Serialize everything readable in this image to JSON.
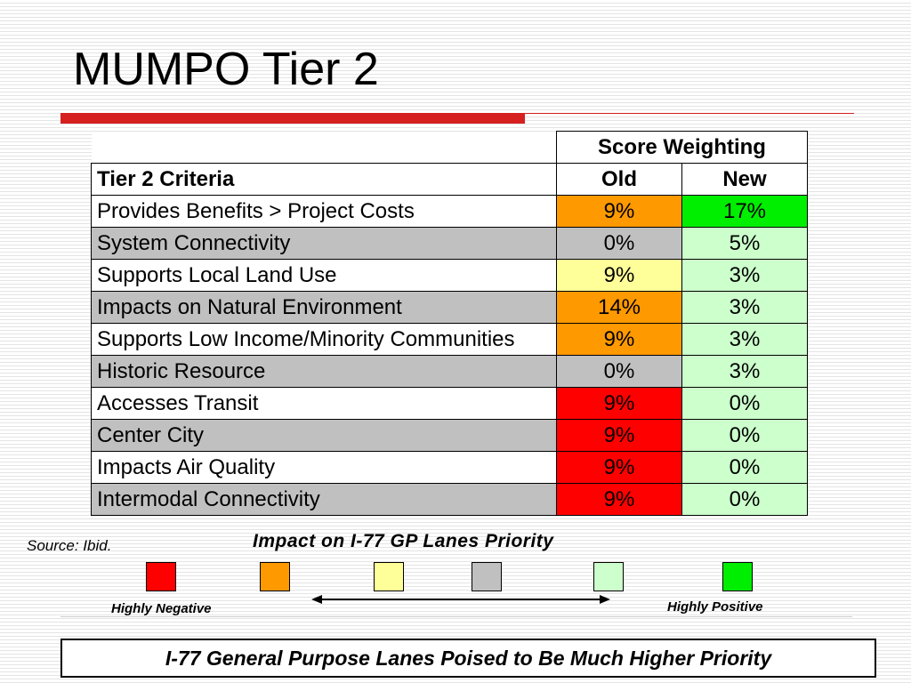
{
  "slide": {
    "title": "MUMPO Tier 2",
    "source": "Source: Ibid.",
    "banner": "I-77 General Purpose Lanes Poised to Be Much Higher Priority"
  },
  "table": {
    "group_header": "Score Weighting",
    "col_criteria": "Tier 2 Criteria",
    "col_old": "Old",
    "col_new": "New",
    "rows": [
      {
        "name": "Provides Benefits > Project Costs",
        "old": "9%",
        "new": "17%"
      },
      {
        "name": "System Connectivity",
        "old": "0%",
        "new": "5%"
      },
      {
        "name": "Supports Local Land Use",
        "old": "9%",
        "new": "3%"
      },
      {
        "name": "Impacts on Natural Environment",
        "old": "14%",
        "new": "3%"
      },
      {
        "name": "Supports Low Income/Minority Communities",
        "old": "9%",
        "new": "3%"
      },
      {
        "name": "Historic Resource",
        "old": "0%",
        "new": "3%"
      },
      {
        "name": "Accesses Transit",
        "old": "9%",
        "new": "0%"
      },
      {
        "name": "Center City",
        "old": "9%",
        "new": "0%"
      },
      {
        "name": "Impacts Air Quality",
        "old": "9%",
        "new": "0%"
      },
      {
        "name": "Intermodal Connectivity",
        "old": "9%",
        "new": "0%"
      }
    ]
  },
  "legend": {
    "title": "Impact on I-77 GP Lanes Priority",
    "low_label": "Highly Negative",
    "high_label": "Highly Positive",
    "colors": {
      "highly_negative": "#ff0000",
      "negative": "#ff9900",
      "slight_negative": "#ffff99",
      "neutral": "#c0c0c0",
      "slight_positive": "#ccffcc",
      "highly_positive": "#00ee00"
    }
  },
  "colors": {
    "title_bar": "#d62020"
  }
}
